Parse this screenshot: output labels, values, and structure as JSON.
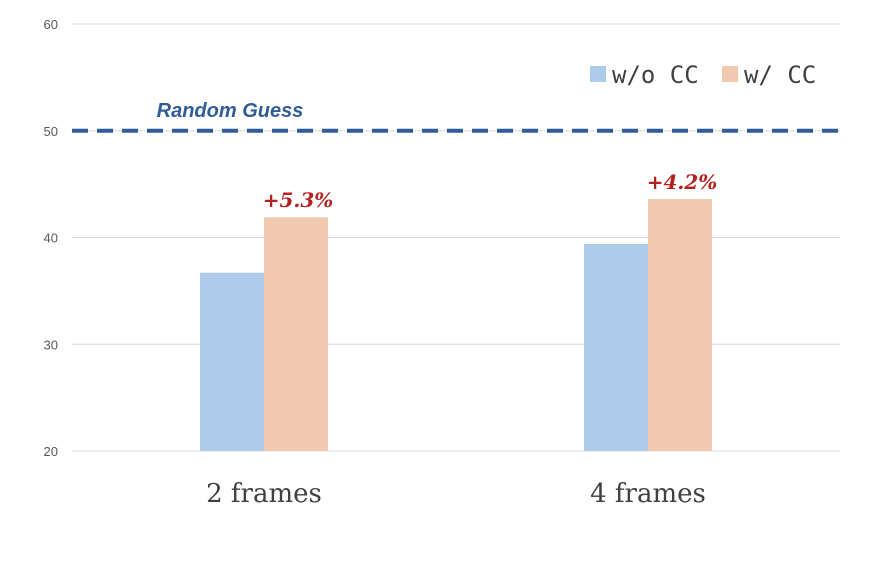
{
  "chart_data": {
    "type": "bar",
    "categories": [
      "2 frames",
      "4 frames"
    ],
    "series": [
      {
        "name": "w/o CC",
        "values": [
          36.7,
          39.4
        ],
        "color": "#AFCBEA"
      },
      {
        "name": "w/ CC",
        "values": [
          41.9,
          43.6
        ],
        "color": "#F0C9B0"
      }
    ],
    "ylim": [
      20,
      60
    ],
    "yticks": [
      20,
      30,
      40,
      50,
      60
    ],
    "grid": true,
    "legend": "top-right",
    "reference_line": {
      "value": 50,
      "label": "Random Guess",
      "color": "#2F5D98",
      "style": "dashed"
    },
    "annotations": [
      {
        "category": "2 frames",
        "text": "+5.3%",
        "color": "#B52020"
      },
      {
        "category": "4 frames",
        "text": "+4.2%",
        "color": "#B52020"
      }
    ]
  }
}
